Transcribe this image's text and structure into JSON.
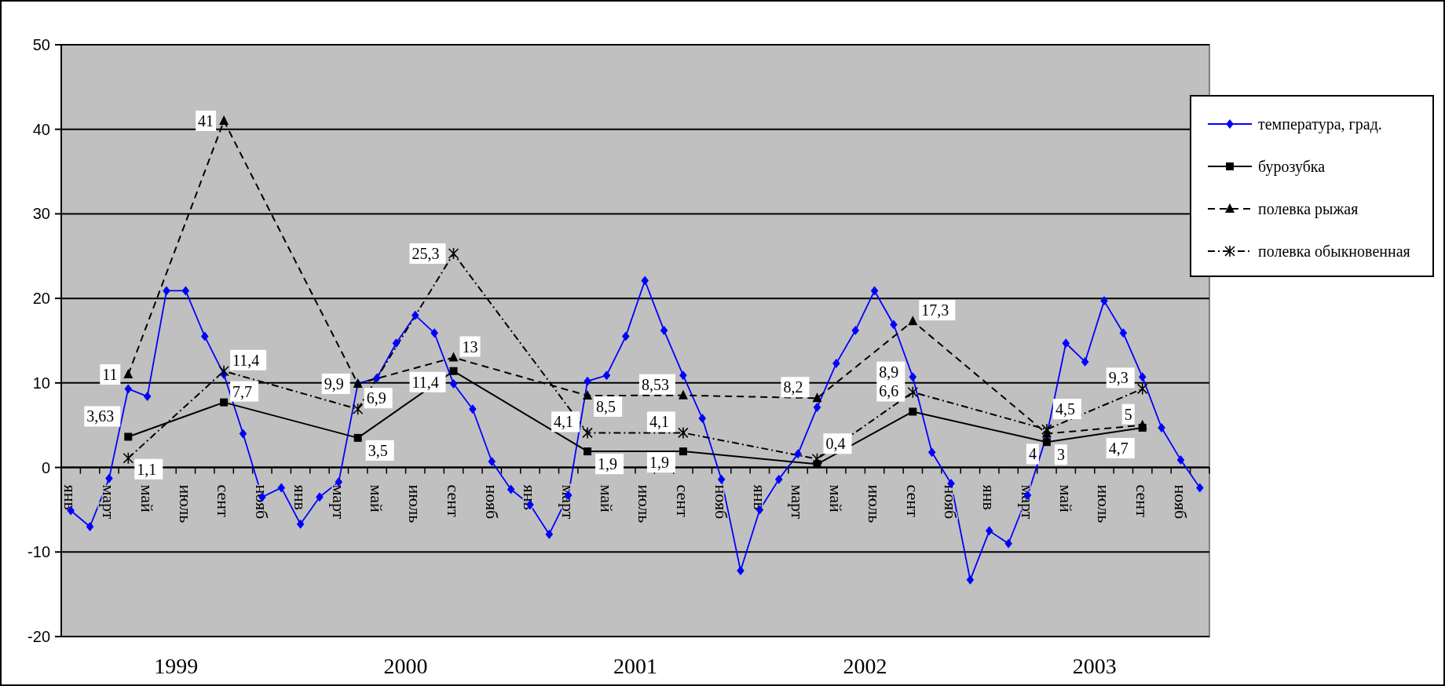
{
  "chart_data": {
    "type": "line",
    "categories": [
      "янв",
      null,
      "март",
      null,
      "май",
      null,
      "июль",
      null,
      "сент",
      null,
      "нояб",
      null,
      "янв",
      null,
      "март",
      null,
      "май",
      null,
      "июль",
      null,
      "сент",
      null,
      "нояб",
      null,
      "янв",
      null,
      "март",
      null,
      "май",
      null,
      "июль",
      null,
      "сент",
      null,
      "нояб",
      null,
      "янв",
      null,
      "март",
      null,
      "май",
      null,
      "июль",
      null,
      "сент",
      null,
      "нояб",
      null,
      "янв",
      null,
      "март",
      null,
      "май",
      null,
      "июль",
      null,
      "сент",
      null,
      "нояб",
      null
    ],
    "series": [
      {
        "name": "температура, град.",
        "color": "#0000ff",
        "marker": "diamond",
        "line_style": "solid",
        "values": [
          -5.1,
          -7.0,
          -1.3,
          9.3,
          8.4,
          20.9,
          20.9,
          15.5,
          11.0,
          4.0,
          -3.5,
          -2.4,
          -6.7,
          -3.5,
          -1.7,
          9.9,
          10.6,
          14.7,
          18.0,
          15.9,
          9.9,
          6.9,
          0.7,
          -2.6,
          -4.4,
          -7.9,
          -3.3,
          10.2,
          10.9,
          15.5,
          22.1,
          16.2,
          10.9,
          5.8,
          -1.4,
          -12.2,
          -5.0,
          -1.4,
          1.6,
          7.1,
          12.3,
          16.2,
          20.9,
          16.9,
          10.7,
          1.8,
          -1.9,
          -13.3,
          -7.5,
          -9.0,
          -3.3,
          3.8,
          14.7,
          12.5,
          19.7,
          15.9,
          10.7,
          4.7,
          0.9,
          -2.4
        ]
      },
      {
        "name": "бурозубка",
        "color": "#000000",
        "marker": "square",
        "line_style": "solid",
        "values": [
          null,
          null,
          null,
          3.63,
          null,
          null,
          null,
          null,
          7.7,
          null,
          null,
          null,
          null,
          null,
          null,
          3.5,
          null,
          null,
          null,
          null,
          11.4,
          null,
          null,
          null,
          null,
          null,
          null,
          1.9,
          null,
          null,
          null,
          null,
          1.9,
          null,
          null,
          null,
          null,
          null,
          null,
          0.4,
          null,
          null,
          null,
          null,
          6.6,
          null,
          null,
          null,
          null,
          null,
          null,
          3,
          null,
          null,
          null,
          null,
          4.7,
          null,
          null,
          null
        ],
        "value_labels": [
          null,
          null,
          null,
          "3,63",
          null,
          null,
          null,
          null,
          "7,7",
          null,
          null,
          null,
          null,
          null,
          null,
          "3,5",
          null,
          null,
          null,
          null,
          "11,4",
          null,
          null,
          null,
          null,
          null,
          null,
          "1,9",
          null,
          null,
          null,
          null,
          "1,9",
          null,
          null,
          null,
          null,
          null,
          null,
          "0,4",
          null,
          null,
          null,
          null,
          "6,6",
          null,
          null,
          null,
          null,
          null,
          null,
          "3",
          null,
          null,
          null,
          null,
          "4,7",
          null,
          null,
          null
        ]
      },
      {
        "name": "полевка рыжая",
        "color": "#000000",
        "marker": "triangle",
        "line_style": "dashed",
        "values": [
          null,
          null,
          null,
          11,
          null,
          null,
          null,
          null,
          41,
          null,
          null,
          null,
          null,
          null,
          null,
          9.9,
          null,
          null,
          null,
          null,
          13,
          null,
          null,
          null,
          null,
          null,
          null,
          8.5,
          null,
          null,
          null,
          null,
          8.53,
          null,
          null,
          null,
          null,
          null,
          null,
          8.2,
          null,
          null,
          null,
          null,
          17.3,
          null,
          null,
          null,
          null,
          null,
          null,
          4,
          null,
          null,
          null,
          null,
          5,
          null,
          null,
          null
        ],
        "value_labels": [
          null,
          null,
          null,
          "11",
          null,
          null,
          null,
          null,
          "41",
          null,
          null,
          null,
          null,
          null,
          null,
          "9,9",
          null,
          null,
          null,
          null,
          "13",
          null,
          null,
          null,
          null,
          null,
          null,
          "8,5",
          null,
          null,
          null,
          null,
          "8,53",
          null,
          null,
          null,
          null,
          null,
          null,
          "8,2",
          null,
          null,
          null,
          null,
          "17,3",
          null,
          null,
          null,
          null,
          null,
          null,
          "4",
          null,
          null,
          null,
          null,
          "5",
          null,
          null,
          null
        ]
      },
      {
        "name": "полевка обыкновенная",
        "color": "#000000",
        "marker": "cross",
        "line_style": "dotted",
        "values": [
          null,
          null,
          null,
          1.1,
          null,
          null,
          null,
          null,
          11.4,
          null,
          null,
          null,
          null,
          null,
          null,
          6.9,
          null,
          null,
          null,
          null,
          25.3,
          null,
          null,
          null,
          null,
          null,
          null,
          4.1,
          null,
          null,
          null,
          null,
          4.1,
          null,
          null,
          null,
          null,
          null,
          null,
          1.0,
          null,
          null,
          null,
          null,
          8.9,
          null,
          null,
          null,
          null,
          null,
          null,
          4.5,
          null,
          null,
          null,
          null,
          9.3,
          null,
          null,
          null
        ],
        "value_labels": [
          null,
          null,
          null,
          "1,1",
          null,
          null,
          null,
          null,
          "11,4",
          null,
          null,
          null,
          null,
          null,
          null,
          "6,9",
          null,
          null,
          null,
          null,
          "25,3",
          null,
          null,
          null,
          null,
          null,
          null,
          "4,1",
          null,
          null,
          null,
          null,
          "4,1",
          null,
          null,
          null,
          null,
          null,
          null,
          null,
          null,
          null,
          null,
          null,
          "8,9",
          null,
          null,
          null,
          null,
          null,
          null,
          "4,5",
          null,
          null,
          null,
          null,
          "9,3",
          null,
          null,
          null
        ]
      }
    ],
    "annotations": [
      "1999",
      "2000",
      "2001",
      "2002",
      "2003"
    ],
    "ylim": [
      -20,
      50
    ],
    "yticks": [
      -20,
      -10,
      0,
      10,
      20,
      30,
      40,
      50
    ],
    "grid": "y",
    "legend": "right"
  }
}
